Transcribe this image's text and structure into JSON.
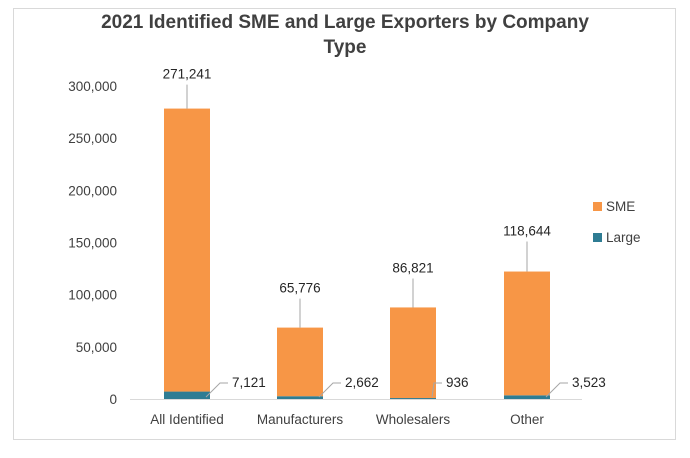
{
  "chart_data": {
    "type": "bar",
    "stacked": true,
    "title_lines": [
      "2021 Identified SME and Large Exporters by Company",
      "Type"
    ],
    "xlabel": "",
    "ylabel": "",
    "categories": [
      "All Identified",
      "Manufacturers",
      "Wholesalers",
      "Other"
    ],
    "series": [
      {
        "name": "Large",
        "color": "#2e7c93",
        "values": [
          7121,
          2662,
          936,
          3523
        ],
        "labels": [
          "7,121",
          "2,662",
          "936",
          "3,523"
        ]
      },
      {
        "name": "SME",
        "color": "#f79646",
        "values": [
          271241,
          65776,
          86821,
          118644
        ],
        "labels": [
          "271,241",
          "65,776",
          "86,821",
          "118,644"
        ]
      }
    ],
    "ylim": [
      0,
      300000
    ],
    "yticks": [
      0,
      50000,
      100000,
      150000,
      200000,
      250000,
      300000
    ],
    "ytick_labels": [
      "0",
      "50,000",
      "100,000",
      "150,000",
      "200,000",
      "250,000",
      "300,000"
    ],
    "gridlines": false,
    "legend": {
      "position": "right",
      "order": [
        "SME",
        "Large"
      ]
    }
  }
}
